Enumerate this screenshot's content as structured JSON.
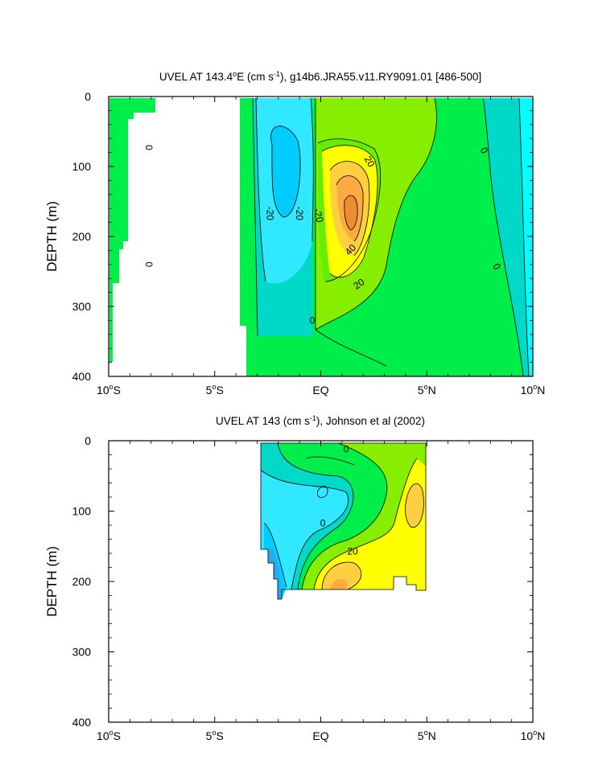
{
  "chart_data": [
    {
      "type": "heatmap",
      "title_pre": "UVEL AT 143.4",
      "title_sup1": "o",
      "title_mid": "E (cm s",
      "title_sup2": "-1",
      "title_post": "), g14b6.JRA55.v11.RY9091.01 [486-500]",
      "ylabel": "DEPTH (m)",
      "xlim": [
        -10,
        10
      ],
      "ylim": [
        400,
        0
      ],
      "xticks": [
        {
          "value": -10,
          "num": "10",
          "deg": "o",
          "hemi": "S"
        },
        {
          "value": -5,
          "num": "5",
          "deg": "o",
          "hemi": "S"
        },
        {
          "value": 0,
          "num": "EQ",
          "deg": "",
          "hemi": ""
        },
        {
          "value": 5,
          "num": "5",
          "deg": "o",
          "hemi": "N"
        },
        {
          "value": 10,
          "num": "10",
          "deg": "o",
          "hemi": "N"
        }
      ],
      "yticks": [
        0,
        100,
        200,
        300,
        400
      ],
      "contour_interval": 10,
      "contour_labels": [
        {
          "text": "0",
          "lat": -8.1,
          "depth": 73,
          "rot": 90
        },
        {
          "text": "0",
          "lat": -8.1,
          "depth": 240,
          "rot": 90
        },
        {
          "text": "-20",
          "lat": -2.4,
          "depth": 167,
          "rot": 90
        },
        {
          "text": "-20",
          "lat": -1.0,
          "depth": 167,
          "rot": 90
        },
        {
          "text": "-20",
          "lat": -0.1,
          "depth": 170,
          "rot": 75
        },
        {
          "text": "20",
          "lat": 2.3,
          "depth": 93,
          "rot": 60
        },
        {
          "text": "40",
          "lat": 1.4,
          "depth": 219,
          "rot": -45
        },
        {
          "text": "20",
          "lat": 1.8,
          "depth": 268,
          "rot": -35
        },
        {
          "text": "0",
          "lat": -0.4,
          "depth": 320,
          "rot": 0
        },
        {
          "text": "0",
          "lat": 7.7,
          "depth": 77,
          "rot": 60
        },
        {
          "text": "0",
          "lat": 8.3,
          "depth": 243,
          "rot": 60
        }
      ]
    },
    {
      "type": "heatmap",
      "title_pre": "UVEL AT 143 (cm s",
      "title_sup1": "-1",
      "title_mid": "), Johnson et al (2002)",
      "title_sup2": "",
      "title_post": "",
      "ylabel": "DEPTH (m)",
      "xlim": [
        -10,
        10
      ],
      "ylim": [
        400,
        0
      ],
      "xticks": [
        {
          "value": -10,
          "num": "10",
          "deg": "o",
          "hemi": "S"
        },
        {
          "value": -5,
          "num": "5",
          "deg": "o",
          "hemi": "S"
        },
        {
          "value": 0,
          "num": "EQ",
          "deg": "",
          "hemi": ""
        },
        {
          "value": 5,
          "num": "5",
          "deg": "o",
          "hemi": "N"
        },
        {
          "value": 10,
          "num": "10",
          "deg": "o",
          "hemi": "N"
        }
      ],
      "yticks": [
        0,
        100,
        200,
        300,
        400
      ],
      "data_extent_lat": [
        -2.8,
        5.0
      ],
      "contour_interval": 10,
      "contour_labels": [
        {
          "text": "0",
          "lat": 1.2,
          "depth": 12,
          "rot": 0
        },
        {
          "text": "0",
          "lat": 0.1,
          "depth": 117,
          "rot": 0
        },
        {
          "text": "20",
          "lat": 1.5,
          "depth": 157,
          "rot": 0
        }
      ]
    }
  ]
}
